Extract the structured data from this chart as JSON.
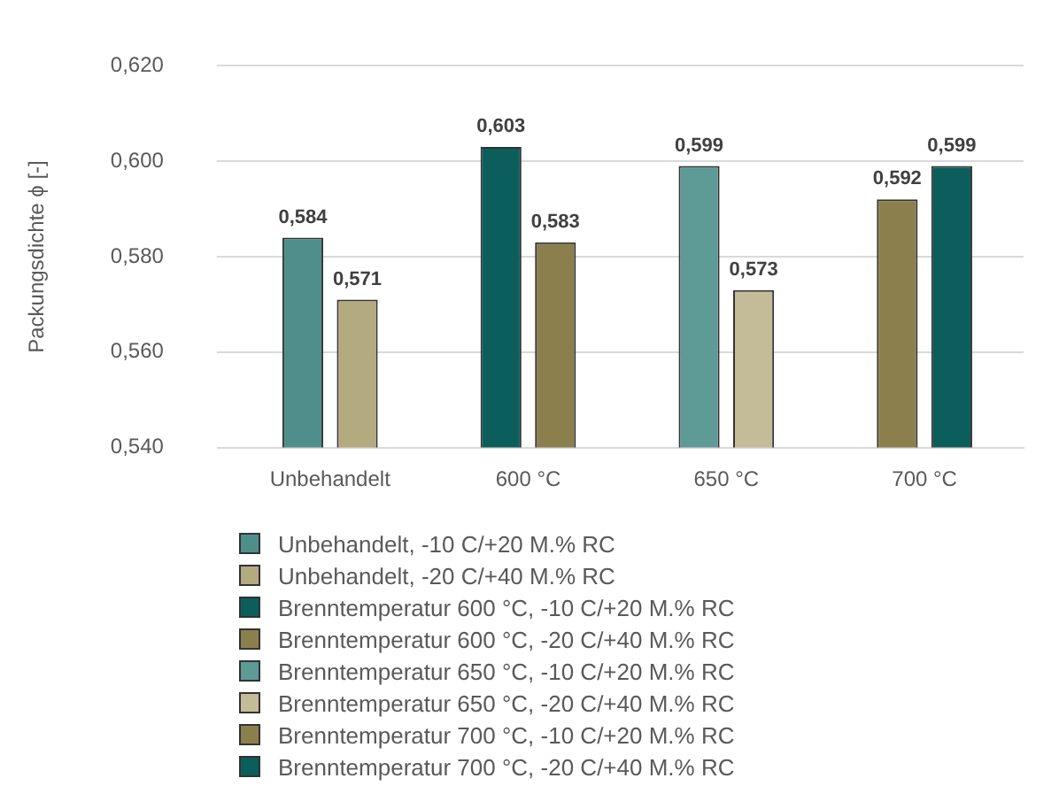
{
  "chart_data": {
    "type": "bar",
    "ylabel": "Packungsdichte ϕ [-]",
    "categories": [
      "Unbehandelt",
      "600 °C",
      "650 °C",
      "700 °C"
    ],
    "ylim": [
      0.54,
      0.62
    ],
    "yticks": [
      {
        "value": 0.54,
        "label": "0,540"
      },
      {
        "value": 0.56,
        "label": "0,560"
      },
      {
        "value": 0.58,
        "label": "0,580"
      },
      {
        "value": 0.6,
        "label": "0,600"
      },
      {
        "value": 0.62,
        "label": "0,620"
      }
    ],
    "grid": "y",
    "legend": "bottom",
    "series": [
      {
        "name": "Unbehandelt, -10 C/+20 M.% RC",
        "color": "#4f8f8b",
        "values": [
          0.584,
          null,
          null,
          null
        ],
        "value_labels": [
          "0,584",
          null,
          null,
          null
        ]
      },
      {
        "name": "Unbehandelt, -20 C/+40 M.% RC",
        "color": "#b3aa80",
        "values": [
          0.571,
          null,
          null,
          null
        ],
        "value_labels": [
          "0,571",
          null,
          null,
          null
        ]
      },
      {
        "name": "Brenntemperatur 600 °C, -10 C/+20 M.% RC",
        "color": "#0b5e5b",
        "values": [
          null,
          0.603,
          null,
          null
        ],
        "value_labels": [
          null,
          "0,603",
          null,
          null
        ]
      },
      {
        "name": "Brenntemperatur 600 °C, -20 C/+40 M.% RC",
        "color": "#8b7f4d",
        "values": [
          null,
          0.583,
          null,
          null
        ],
        "value_labels": [
          null,
          "0,583",
          null,
          null
        ]
      },
      {
        "name": "Brenntemperatur 650 °C, -10 C/+20 M.% RC",
        "color": "#5e9a96",
        "values": [
          null,
          null,
          0.599,
          null
        ],
        "value_labels": [
          null,
          null,
          "0,599",
          null
        ]
      },
      {
        "name": "Brenntemperatur 650 °C, -20 C/+40 M.% RC",
        "color": "#c4bc98",
        "values": [
          null,
          null,
          0.573,
          null
        ],
        "value_labels": [
          null,
          null,
          "0,573",
          null
        ]
      },
      {
        "name": "Brenntemperatur 700 °C, -10 C/+20 M.% RC",
        "color": "#8b7f4d",
        "values": [
          null,
          null,
          null,
          0.592
        ],
        "value_labels": [
          null,
          null,
          null,
          "0,592"
        ]
      },
      {
        "name": "Brenntemperatur 700 °C, -20 C/+40 M.% RC",
        "color": "#0b5e5b",
        "values": [
          null,
          null,
          null,
          0.599
        ],
        "value_labels": [
          null,
          null,
          null,
          "0,599"
        ]
      }
    ]
  }
}
